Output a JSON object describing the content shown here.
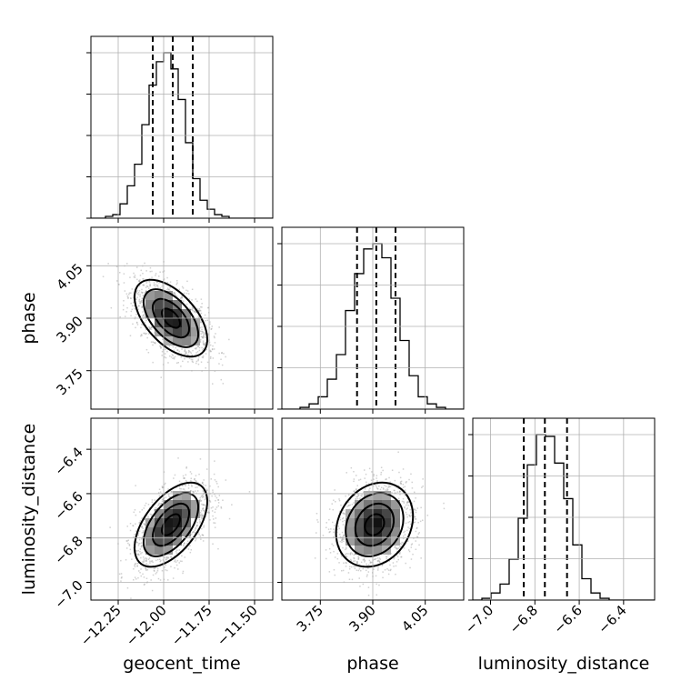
{
  "chart_data": {
    "type": "corner",
    "parameters": [
      "geocent_time",
      "phase",
      "luminosity_distance"
    ],
    "ranges": {
      "geocent_time": [
        -12.4,
        -11.4
      ],
      "phase": [
        3.64,
        4.16
      ],
      "luminosity_distance": [
        -7.08,
        -6.26
      ]
    },
    "ticks": {
      "geocent_time": [
        -12.25,
        -12.0,
        -11.75,
        -11.5
      ],
      "phase": [
        3.75,
        3.9,
        4.05
      ],
      "luminosity_distance": [
        -7.0,
        -6.8,
        -6.6,
        -6.4
      ]
    },
    "tick_labels": {
      "geocent_time": [
        "−12.25",
        "−12.00",
        "−11.75",
        "−11.50"
      ],
      "phase": [
        "3.75",
        "3.90",
        "4.05"
      ],
      "luminosity_distance": [
        "−7.0",
        "−6.8",
        "−6.6",
        "−6.4"
      ]
    },
    "quantiles": {
      "geocent_time": [
        -12.06,
        -11.95,
        -11.84
      ],
      "phase": [
        3.855,
        3.91,
        3.965
      ],
      "luminosity_distance": [
        -6.85,
        -6.755,
        -6.655
      ]
    },
    "histograms": {
      "geocent_time": {
        "range": [
          -12.4,
          -11.4
        ],
        "counts": [
          0,
          0,
          1,
          2,
          8,
          18,
          30,
          52,
          74,
          87,
          92,
          83,
          66,
          42,
          22,
          10,
          5,
          2,
          1,
          0,
          0,
          0,
          0,
          0,
          0
        ]
      },
      "phase": {
        "range": [
          3.64,
          4.16
        ],
        "counts": [
          0,
          0,
          1,
          3,
          7,
          17,
          31,
          56,
          77,
          91,
          94,
          86,
          63,
          39,
          19,
          7,
          3,
          1,
          0,
          0
        ]
      },
      "luminosity_distance": {
        "range": [
          -7.08,
          -6.26
        ],
        "counts": [
          0,
          1,
          4,
          9,
          23,
          46,
          76,
          93,
          92,
          77,
          57,
          31,
          12,
          4,
          1,
          0,
          0,
          0,
          0,
          0
        ]
      }
    },
    "pairs": [
      {
        "x": "geocent_time",
        "y": "phase",
        "center": [
          -11.96,
          3.9
        ],
        "sigma": [
          0.1,
          0.055
        ],
        "rho": -0.55
      },
      {
        "x": "geocent_time",
        "y": "luminosity_distance",
        "center": [
          -11.96,
          -6.74
        ],
        "sigma": [
          0.1,
          0.095
        ],
        "rho": 0.55
      },
      {
        "x": "phase",
        "y": "luminosity_distance",
        "center": [
          3.905,
          -6.74
        ],
        "sigma": [
          0.055,
          0.095
        ],
        "rho": 0.2
      }
    ],
    "contour_levels_sigma": [
      0.5,
      1.0,
      1.5,
      2.0
    ],
    "density_shading": true,
    "grid": true,
    "xlabels": [
      "geocent_time",
      "phase",
      "luminosity_distance"
    ],
    "ylabels": [
      "",
      "phase",
      "luminosity_distance"
    ]
  },
  "colors": {
    "background": "#ffffff",
    "line": "#000000",
    "grid": "#b0b0b0",
    "scatter": "#9a9a9a"
  }
}
